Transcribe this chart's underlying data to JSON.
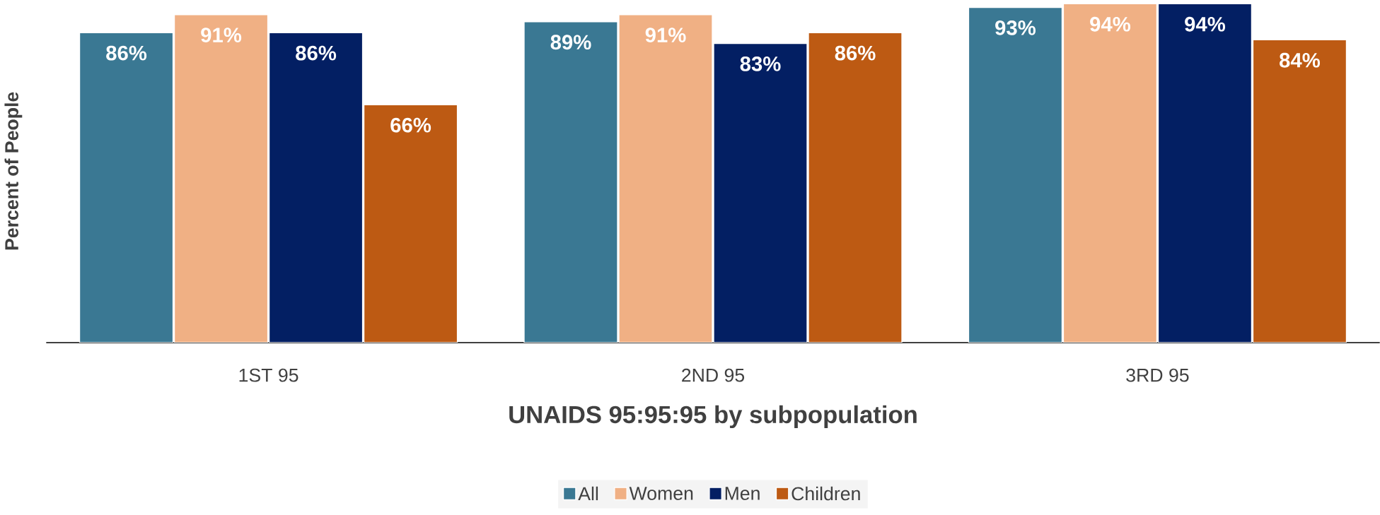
{
  "chart_data": {
    "type": "bar",
    "xlabel": "UNAIDS 95:95:95 by subpopulation",
    "ylabel": "Percent of People",
    "categories": [
      "1ST 95",
      "2ND 95",
      "3RD 95"
    ],
    "series": [
      {
        "name": "All",
        "color": "#3a7893",
        "values": [
          86,
          89,
          93
        ],
        "value_labels": [
          "86%",
          "89%",
          "93%"
        ]
      },
      {
        "name": "Women",
        "color": "#f0b084",
        "values": [
          91,
          91,
          94
        ],
        "value_labels": [
          "91%",
          "91%",
          "94%"
        ]
      },
      {
        "name": "Men",
        "color": "#031f63",
        "values": [
          86,
          83,
          94
        ],
        "value_labels": [
          "86%",
          "83%",
          "94%"
        ]
      },
      {
        "name": "Children",
        "color": "#bd5a13",
        "values": [
          66,
          86,
          84
        ],
        "value_labels": [
          "66%",
          "86%",
          "84%"
        ]
      }
    ],
    "legend": "bottom"
  }
}
